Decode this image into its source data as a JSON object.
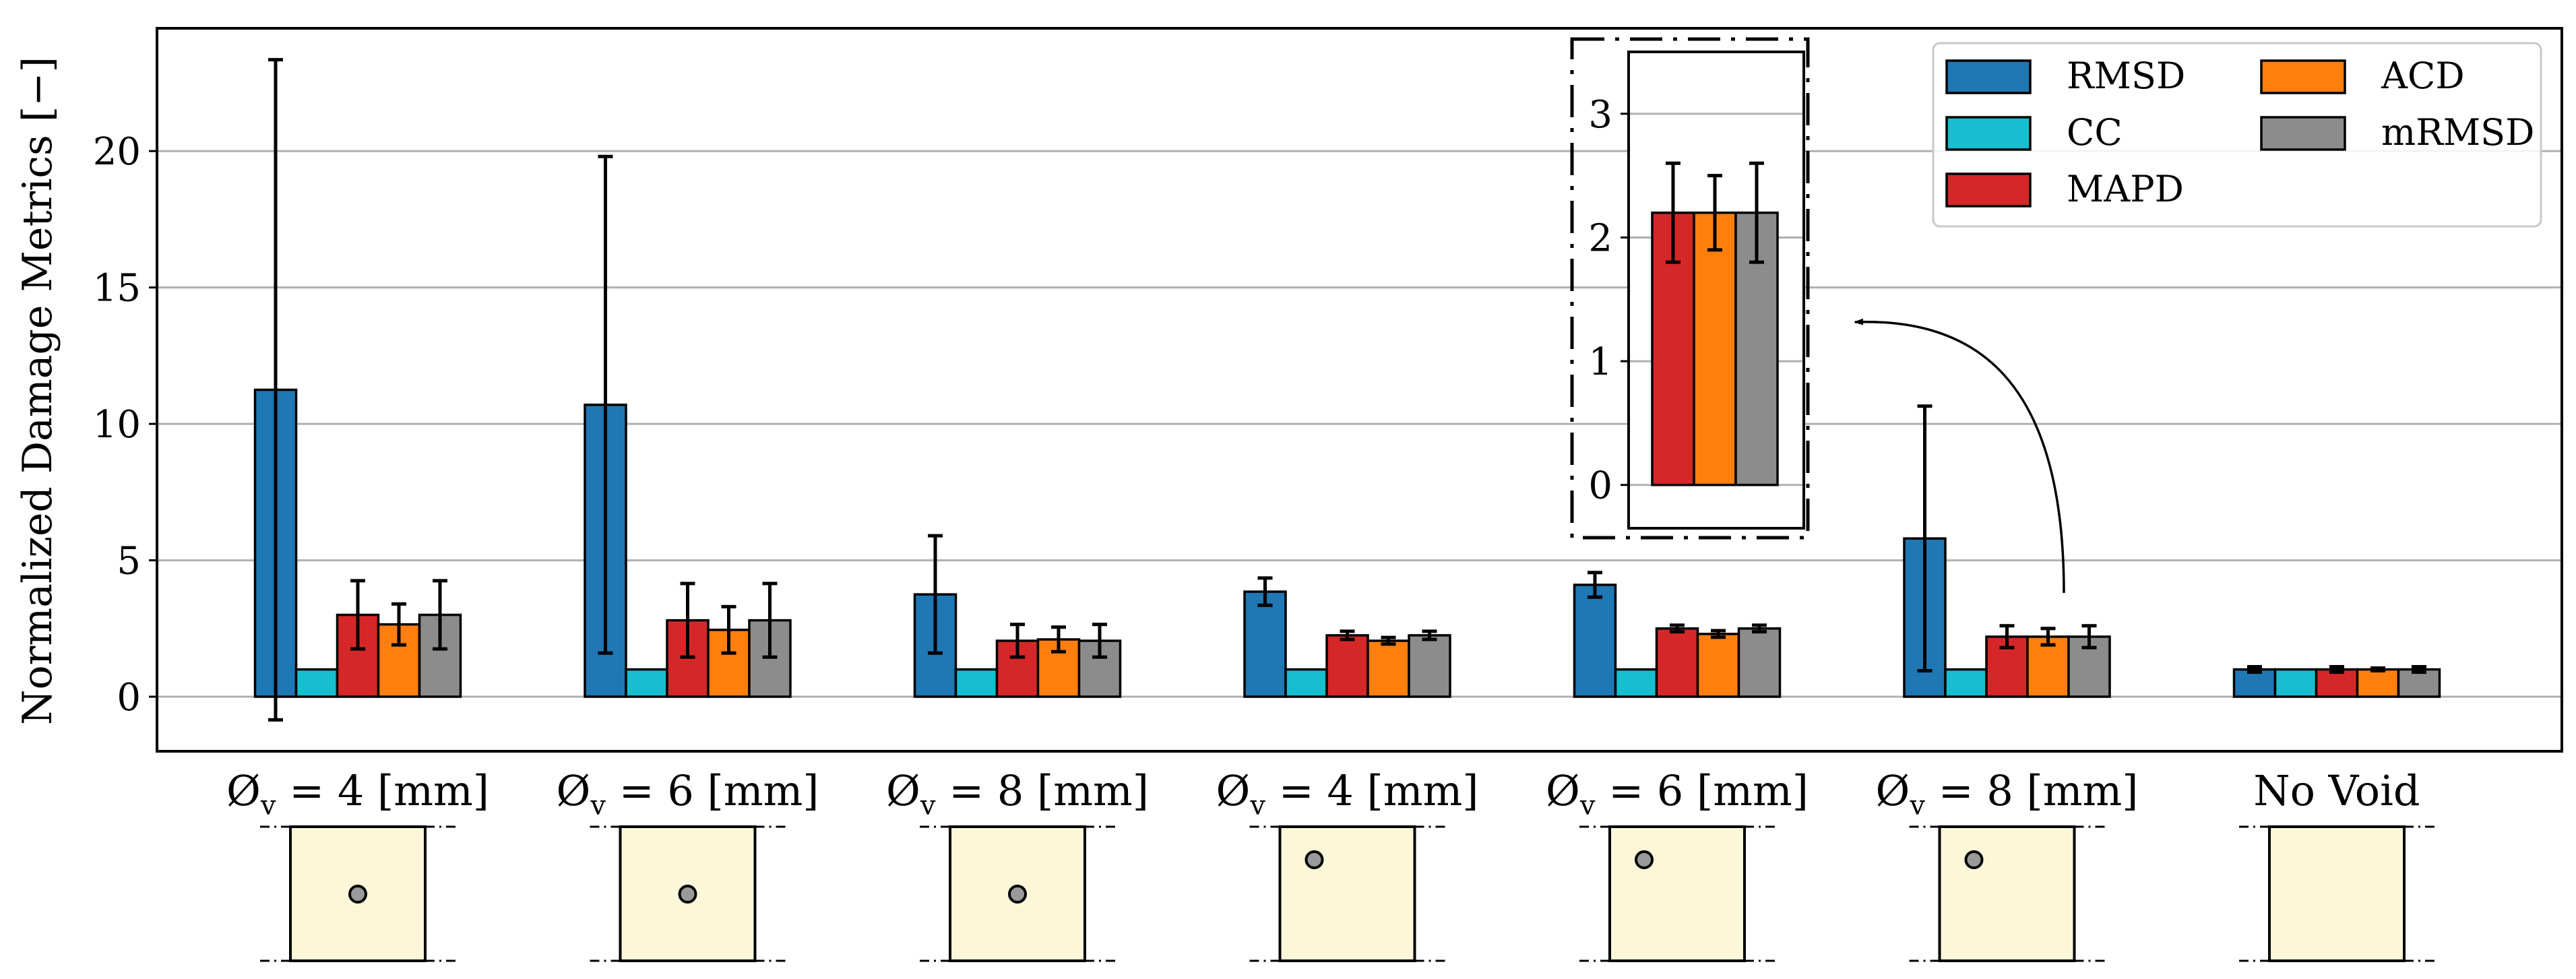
{
  "chart_data": {
    "type": "bar",
    "ylabel": "Normalized Damage Metrics [−]",
    "xlabel": "",
    "ylim": [
      -2,
      24.5
    ],
    "yticks": [
      0,
      5,
      10,
      15,
      20
    ],
    "grid": "horizontal",
    "legend_position": "top-right",
    "categories": [
      {
        "prefix": "Ø",
        "sub": "v",
        "suffix": " = 4 [mm]",
        "void_location": "center"
      },
      {
        "prefix": "Ø",
        "sub": "v",
        "suffix": " = 6 [mm]",
        "void_location": "center"
      },
      {
        "prefix": "Ø",
        "sub": "v",
        "suffix": " = 8 [mm]",
        "void_location": "center"
      },
      {
        "prefix": "Ø",
        "sub": "v",
        "suffix": " = 4 [mm]",
        "void_location": "top-left"
      },
      {
        "prefix": "Ø",
        "sub": "v",
        "suffix": " = 6 [mm]",
        "void_location": "top-left"
      },
      {
        "prefix": "Ø",
        "sub": "v",
        "suffix": " = 8 [mm]",
        "void_location": "top-left"
      },
      {
        "prefix": "No Void",
        "sub": "",
        "suffix": "",
        "void_location": "none"
      }
    ],
    "series": [
      {
        "name": "RMSD",
        "color": "#1f77b4",
        "values": [
          11.25,
          10.7,
          3.75,
          3.85,
          4.1,
          5.8,
          1.0
        ],
        "errors": [
          12.1,
          9.1,
          2.15,
          0.5,
          0.45,
          4.85,
          0.1
        ]
      },
      {
        "name": "CC",
        "color": "#17becf",
        "values": [
          1.0,
          1.0,
          1.0,
          1.0,
          1.0,
          1.0,
          1.0
        ],
        "errors": [
          0,
          0,
          0,
          0,
          0,
          0,
          0
        ]
      },
      {
        "name": "MAPD",
        "color": "#d62728",
        "values": [
          3.0,
          2.8,
          2.05,
          2.25,
          2.5,
          2.2,
          1.0
        ],
        "errors": [
          1.25,
          1.35,
          0.6,
          0.15,
          0.12,
          0.4,
          0.1
        ]
      },
      {
        "name": "ACD",
        "color": "#ff7f0e",
        "values": [
          2.65,
          2.45,
          2.1,
          2.05,
          2.3,
          2.2,
          1.0
        ],
        "errors": [
          0.75,
          0.85,
          0.45,
          0.12,
          0.12,
          0.3,
          0.05
        ]
      },
      {
        "name": "mRMSD",
        "color": "#8c8c8c",
        "values": [
          3.0,
          2.8,
          2.05,
          2.25,
          2.5,
          2.2,
          1.0
        ],
        "errors": [
          1.25,
          1.35,
          0.6,
          0.15,
          0.12,
          0.4,
          0.1
        ]
      }
    ],
    "legend_entries": [
      "RMSD",
      "ACD",
      "CC",
      "mRMSD",
      "MAPD"
    ],
    "inset": {
      "source_category": 5,
      "series": [
        "MAPD",
        "ACD",
        "mRMSD"
      ],
      "ylim": [
        -0.35,
        3.5
      ],
      "yticks": [
        0,
        1,
        2,
        3
      ]
    },
    "axis_tick_labels": [
      "0",
      "5",
      "10",
      "15",
      "20"
    ],
    "inset_tick_labels": [
      "0",
      "1",
      "2",
      "3"
    ]
  }
}
